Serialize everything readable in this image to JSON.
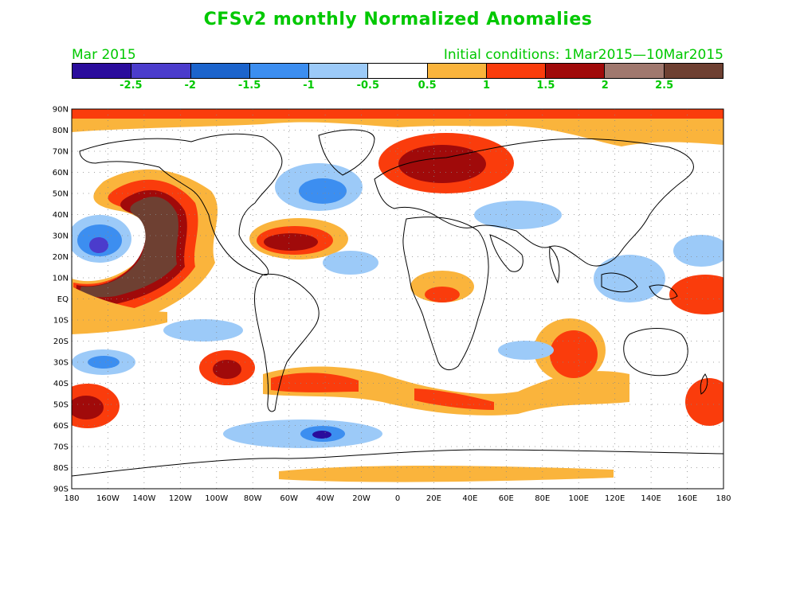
{
  "title": "CFSv2 monthly Normalized Anomalies",
  "subtitle_left": "Mar 2015",
  "subtitle_right": "Initial conditions: 1Mar2015—10Mar2015",
  "colorbar": {
    "colors": [
      "#2a0c9c",
      "#4b3ccc",
      "#1c64cc",
      "#3c8ef0",
      "#9ccaf8",
      "#ffffff",
      "#fab43c",
      "#fa3c0c",
      "#a00a0a",
      "#a0786e",
      "#6e4032"
    ],
    "labels": [
      "-2.5",
      "-2",
      "-1.5",
      "-1",
      "-0.5",
      "0.5",
      "1",
      "1.5",
      "2",
      "2.5"
    ]
  },
  "map": {
    "lat_labels": [
      "90N",
      "80N",
      "70N",
      "60N",
      "50N",
      "40N",
      "30N",
      "20N",
      "10N",
      "EQ",
      "10S",
      "20S",
      "30S",
      "40S",
      "50S",
      "60S",
      "70S",
      "80S",
      "90S"
    ],
    "lon_labels": [
      "180",
      "160W",
      "140W",
      "120W",
      "100W",
      "80W",
      "60W",
      "40W",
      "20W",
      "0",
      "20E",
      "40E",
      "60E",
      "80E",
      "100E",
      "120E",
      "140E",
      "160E",
      "180"
    ]
  }
}
